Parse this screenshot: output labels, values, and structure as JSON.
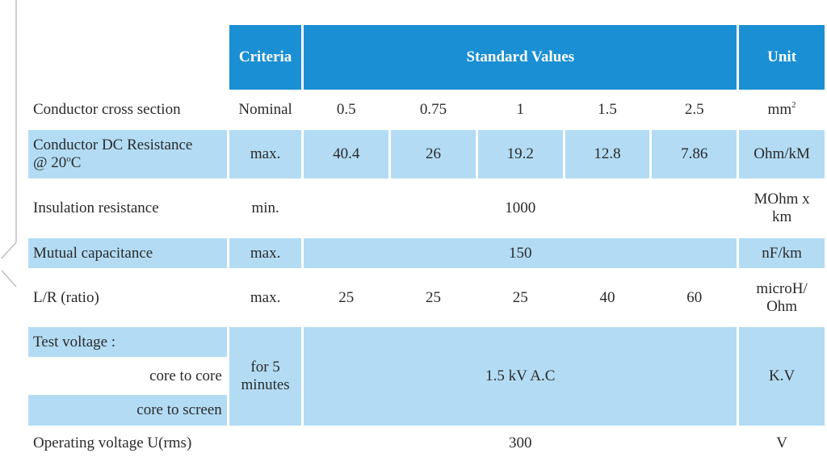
{
  "header": {
    "criteria": "Criteria",
    "standard_values": "Standard Values",
    "unit": "Unit"
  },
  "rows": {
    "cross_section": {
      "label": "Conductor cross section",
      "criteria": "Nominal",
      "values": [
        "0.5",
        "0.75",
        "1",
        "1.5",
        "2.5"
      ],
      "unit_base": "mm",
      "unit_sup": "2"
    },
    "dc_resistance": {
      "label_line1": "Conductor DC Resistance",
      "label_line2_pre": "@ 20",
      "label_sup": "o",
      "label_line2_post": "C",
      "criteria": "max.",
      "values": [
        "40.4",
        "26",
        "19.2",
        "12.8",
        "7.86"
      ],
      "unit": "Ohm/kM"
    },
    "insulation": {
      "label": "Insulation resistance",
      "criteria": "min.",
      "value": "1000",
      "unit_line1": "MOhm x",
      "unit_line2": "km"
    },
    "mutual_cap": {
      "label": "Mutual capacitance",
      "criteria": "max.",
      "value": "150",
      "unit": "nF/km"
    },
    "lr_ratio": {
      "label": "L/R (ratio)",
      "criteria": "max.",
      "values": [
        "25",
        "25",
        "25",
        "40",
        "60"
      ],
      "unit_line1": "microH/",
      "unit_line2": "Ohm"
    },
    "test_voltage": {
      "label": "Test voltage :",
      "sub1": "core to core",
      "sub2": "core to screen",
      "criteria_line1": "for 5",
      "criteria_line2": "minutes",
      "value": "1.5 kV A.C",
      "unit": "K.V"
    },
    "operating_voltage": {
      "label": "Operating voltage  U(rms)",
      "value": "300",
      "unit": "V"
    }
  }
}
